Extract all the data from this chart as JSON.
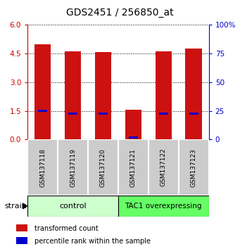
{
  "title": "GDS2451 / 256850_at",
  "samples": [
    "GSM137118",
    "GSM137119",
    "GSM137120",
    "GSM137121",
    "GSM137122",
    "GSM137123"
  ],
  "red_values": [
    5.0,
    4.62,
    4.56,
    1.55,
    4.62,
    4.76
  ],
  "blue_values": [
    1.5,
    1.35,
    1.36,
    0.1,
    1.35,
    1.36
  ],
  "ylim": [
    0,
    6
  ],
  "yticks_left": [
    0,
    1.5,
    3,
    4.5,
    6
  ],
  "yticks_right": [
    0,
    25,
    50,
    75,
    100
  ],
  "bar_width": 0.55,
  "red_color": "#cc1111",
  "blue_color": "#0000cc",
  "control_label": "control",
  "tac1_label": "TAC1 overexpressing",
  "control_color": "#ccffcc",
  "tac1_color": "#66ff66",
  "strain_label": "strain",
  "legend_red": "transformed count",
  "legend_blue": "percentile rank within the sample",
  "tick_bg_color": "#cccccc",
  "title_fontsize": 10,
  "axis_color_left": "#cc0000",
  "axis_color_right": "#0000cc"
}
